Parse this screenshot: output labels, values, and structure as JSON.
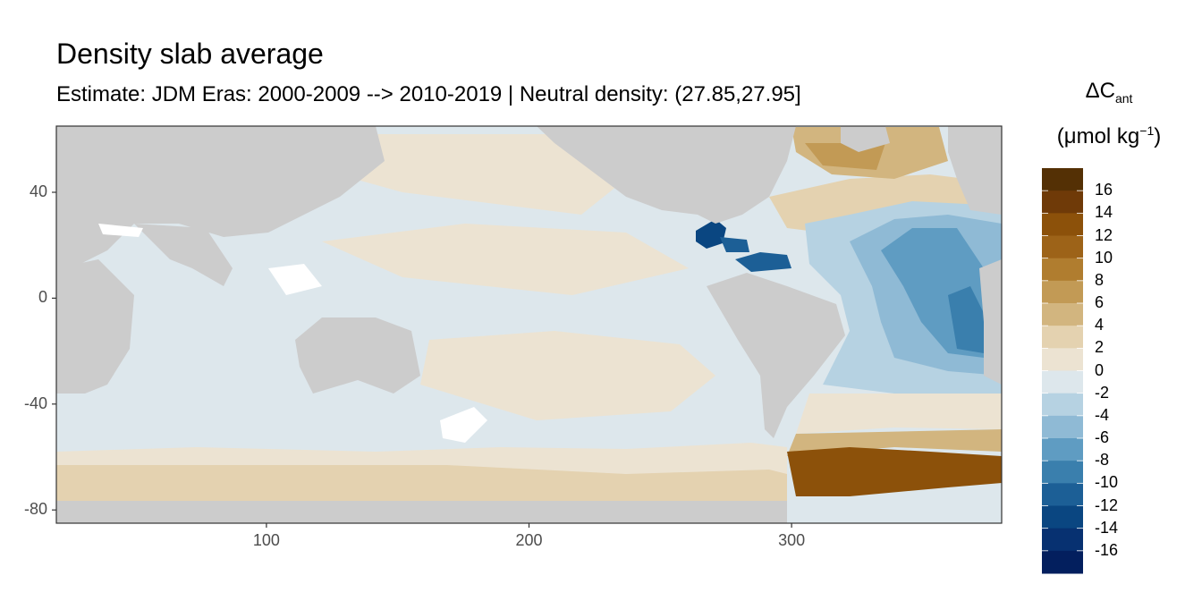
{
  "title": "Density slab average",
  "subtitle": "Estimate: JDM Eras: 2000-2009 --> 2010-2019 | Neutral density: (27.85,27.95]",
  "legend": {
    "title_symbol": "ΔC",
    "title_sub": "ant",
    "units_pre": "(μmol kg",
    "units_sup": "−1",
    "units_post": ")",
    "labels": [
      "16",
      "14",
      "12",
      "10",
      "8",
      "6",
      "4",
      "2",
      "0",
      "-2",
      "-4",
      "-6",
      "-8",
      "-10",
      "-12",
      "-14",
      "-16"
    ],
    "colors": [
      "#543005",
      "#6f3a08",
      "#8c510a",
      "#9d6318",
      "#b07d2f",
      "#c29a55",
      "#d2b57f",
      "#e4d2b0",
      "#ece3d2",
      "#dde7ec",
      "#b6d2e2",
      "#8fbad5",
      "#5f9cc2",
      "#3a7fad",
      "#1c5f96",
      "#0a4681",
      "#073171",
      "#031f5e"
    ]
  },
  "chart_data": {
    "type": "heatmap",
    "title": "Density slab average",
    "subtitle": "Estimate: JDM Eras: 2000-2009 --> 2010-2019 | Neutral density: (27.85,27.95]",
    "x_ticks": [
      100,
      200,
      300
    ],
    "y_ticks": [
      40,
      0,
      -40,
      -80
    ],
    "x_range": [
      20,
      380
    ],
    "y_range": [
      -85,
      65
    ],
    "colorbar_range": [
      -18,
      18
    ],
    "colorbar_step": 2,
    "land_color": "#cccccc",
    "regions_approx": [
      {
        "name": "Pacific / Indian basin",
        "value": -1
      },
      {
        "name": "Tropical/South Pacific band",
        "value": 1
      },
      {
        "name": "Southern Ocean band",
        "value": 3
      },
      {
        "name": "North Atlantic",
        "value": 4
      },
      {
        "name": "Greenland-Iceland Sea",
        "value": 5
      },
      {
        "name": "Gulf of Mexico",
        "value": -15
      },
      {
        "name": "Caribbean",
        "value": -11
      },
      {
        "name": "Tropical Atlantic",
        "value": -3
      },
      {
        "name": "Eastern Atlantic core",
        "value": -9
      },
      {
        "name": "South Atlantic",
        "value": -3
      },
      {
        "name": "Weddell Sea",
        "value": 13
      }
    ]
  }
}
